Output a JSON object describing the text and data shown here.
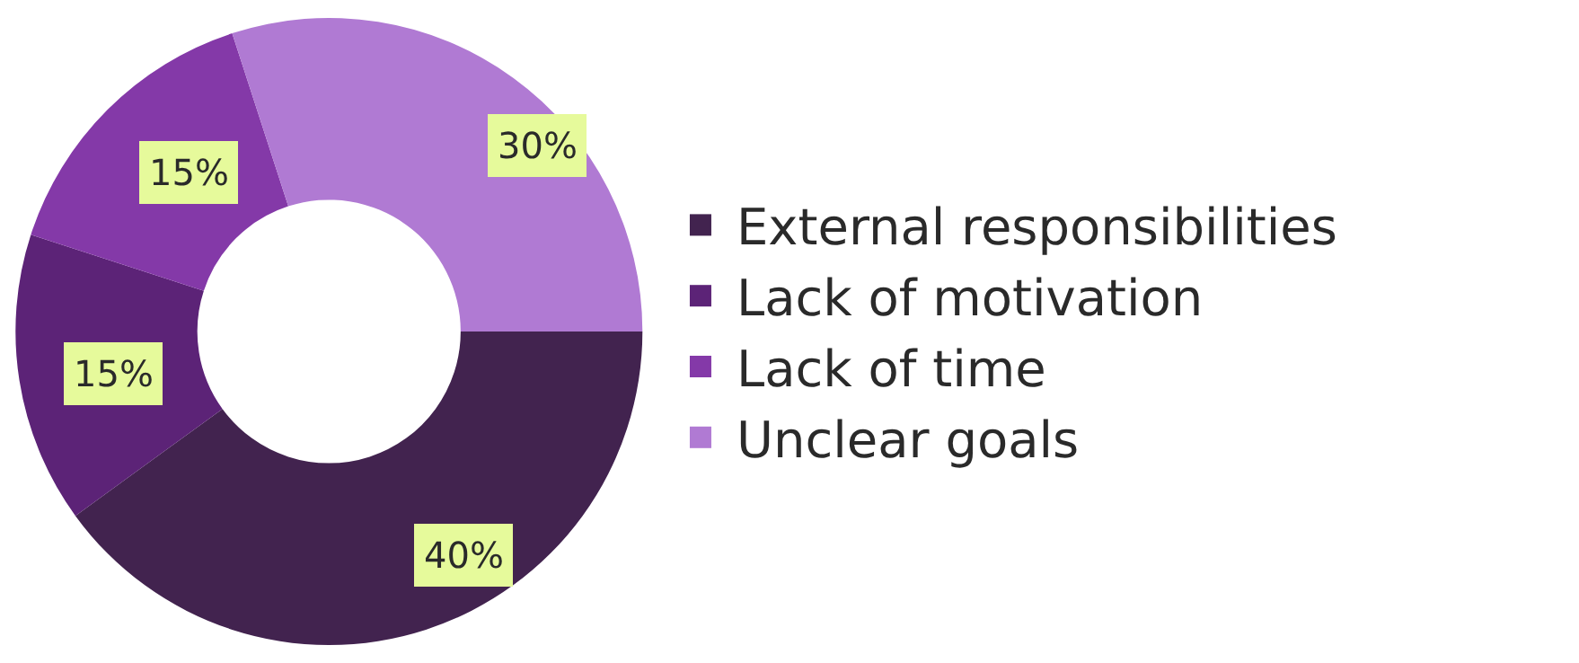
{
  "chart_data": {
    "type": "donut",
    "categories": [
      "External responsibilities",
      "Lack of motivation",
      "Lack of time",
      "Unclear goals"
    ],
    "values": [
      40,
      15,
      15,
      30
    ],
    "colors": [
      "#42234f",
      "#5c2377",
      "#8439a8",
      "#b07ad3"
    ],
    "value_labels": [
      "40%",
      "15%",
      "15%",
      "30%"
    ],
    "legend": "right"
  }
}
